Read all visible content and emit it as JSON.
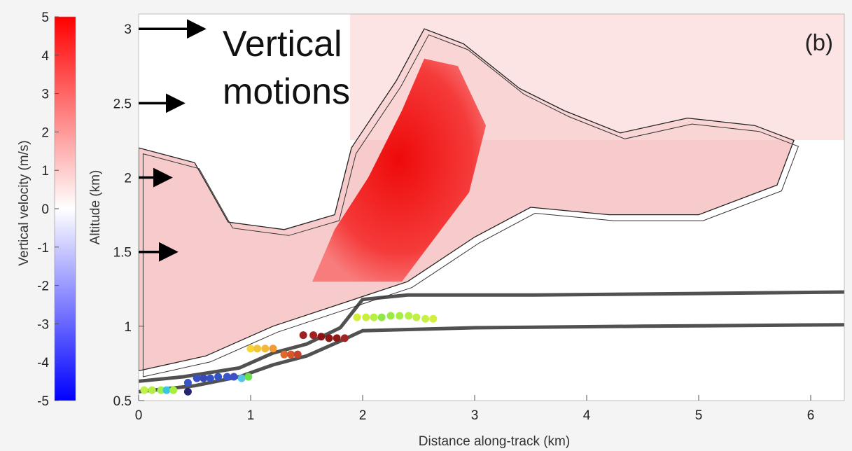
{
  "chart_data": {
    "type": "heatmap",
    "panel_label": "(b)",
    "xlabel": "Distance along-track (km)",
    "ylabel": "Altitude (km)",
    "xlim": [
      0,
      6.3
    ],
    "ylim": [
      0.5,
      3.1
    ],
    "x_ticks": [
      "0",
      "1",
      "2",
      "3",
      "4",
      "5",
      "6"
    ],
    "y_ticks": [
      "0.5",
      "1",
      "1.5",
      "2",
      "2.5",
      "3"
    ],
    "colorbar": {
      "label": "Vertical velocity (m/s)",
      "range": [
        -5,
        5
      ],
      "ticks": [
        "5",
        "4",
        "3",
        "2",
        "1",
        "0",
        "-1",
        "-2",
        "-3",
        "-4",
        "-5"
      ],
      "colormap": [
        "#0000ff",
        "#ffffff",
        "#ff0000"
      ]
    },
    "annotation": {
      "text_lines": [
        "Vertical",
        "motions"
      ],
      "arrow_altitudes_km": [
        3.0,
        2.5,
        2.0,
        1.5
      ]
    },
    "cloud_outline_km": [
      [
        0.0,
        2.2
      ],
      [
        0.5,
        2.1
      ],
      [
        0.8,
        1.7
      ],
      [
        1.3,
        1.65
      ],
      [
        1.75,
        1.75
      ],
      [
        1.9,
        2.2
      ],
      [
        2.3,
        2.65
      ],
      [
        2.55,
        3.0
      ],
      [
        2.9,
        2.9
      ],
      [
        3.4,
        2.6
      ],
      [
        3.8,
        2.45
      ],
      [
        4.3,
        2.3
      ],
      [
        4.9,
        2.4
      ],
      [
        5.5,
        2.35
      ],
      [
        5.85,
        2.25
      ],
      [
        5.7,
        1.95
      ],
      [
        5.0,
        1.75
      ],
      [
        4.2,
        1.75
      ],
      [
        3.5,
        1.8
      ],
      [
        3.0,
        1.6
      ],
      [
        2.4,
        1.3
      ],
      [
        2.0,
        1.2
      ],
      [
        1.2,
        1.0
      ],
      [
        0.6,
        0.8
      ],
      [
        0.0,
        0.7
      ]
    ],
    "updraft_core_km": [
      [
        1.55,
        1.3
      ],
      [
        1.75,
        1.65
      ],
      [
        2.05,
        2.0
      ],
      [
        2.35,
        2.45
      ],
      [
        2.55,
        2.8
      ],
      [
        2.85,
        2.75
      ],
      [
        3.1,
        2.35
      ],
      [
        2.95,
        1.9
      ],
      [
        2.6,
        1.55
      ],
      [
        2.35,
        1.3
      ]
    ],
    "surface_upper_km": [
      [
        0.0,
        0.63
      ],
      [
        0.4,
        0.66
      ],
      [
        0.9,
        0.72
      ],
      [
        1.2,
        0.82
      ],
      [
        1.5,
        0.88
      ],
      [
        1.8,
        0.99
      ],
      [
        2.0,
        1.18
      ],
      [
        2.4,
        1.21
      ],
      [
        3.5,
        1.21
      ],
      [
        5.0,
        1.22
      ],
      [
        6.3,
        1.23
      ]
    ],
    "surface_lower_km": [
      [
        0.0,
        0.56
      ],
      [
        0.5,
        0.6
      ],
      [
        0.9,
        0.66
      ],
      [
        1.2,
        0.74
      ],
      [
        1.5,
        0.8
      ],
      [
        1.8,
        0.9
      ],
      [
        2.0,
        0.97
      ],
      [
        3.0,
        0.99
      ],
      [
        4.5,
        1.0
      ],
      [
        6.3,
        1.01
      ]
    ],
    "points": [
      {
        "x": 0.05,
        "y": 0.57,
        "color": "#bdf247"
      },
      {
        "x": 0.12,
        "y": 0.57,
        "color": "#b3ef48"
      },
      {
        "x": 0.2,
        "y": 0.57,
        "color": "#9ef04a"
      },
      {
        "x": 0.25,
        "y": 0.57,
        "color": "#35c6e8"
      },
      {
        "x": 0.31,
        "y": 0.57,
        "color": "#a6ef3a"
      },
      {
        "x": 0.44,
        "y": 0.56,
        "color": "#262670"
      },
      {
        "x": 0.44,
        "y": 0.62,
        "color": "#3555c8"
      },
      {
        "x": 0.52,
        "y": 0.65,
        "color": "#3a4fc0"
      },
      {
        "x": 0.58,
        "y": 0.65,
        "color": "#3b48b8"
      },
      {
        "x": 0.64,
        "y": 0.65,
        "color": "#3552c4"
      },
      {
        "x": 0.71,
        "y": 0.66,
        "color": "#3352c6"
      },
      {
        "x": 0.79,
        "y": 0.66,
        "color": "#3a55c9"
      },
      {
        "x": 0.85,
        "y": 0.66,
        "color": "#3e52c5"
      },
      {
        "x": 0.92,
        "y": 0.65,
        "color": "#55c2ea"
      },
      {
        "x": 0.98,
        "y": 0.66,
        "color": "#6be04a"
      },
      {
        "x": 1.0,
        "y": 0.85,
        "color": "#f4d63b"
      },
      {
        "x": 1.06,
        "y": 0.85,
        "color": "#f2c438"
      },
      {
        "x": 1.13,
        "y": 0.85,
        "color": "#f3b83a"
      },
      {
        "x": 1.2,
        "y": 0.85,
        "color": "#f29b35"
      },
      {
        "x": 1.3,
        "y": 0.81,
        "color": "#e0692b"
      },
      {
        "x": 1.36,
        "y": 0.81,
        "color": "#d8562a"
      },
      {
        "x": 1.42,
        "y": 0.81,
        "color": "#c4432a"
      },
      {
        "x": 1.47,
        "y": 0.94,
        "color": "#9e2020"
      },
      {
        "x": 1.56,
        "y": 0.94,
        "color": "#a22222"
      },
      {
        "x": 1.63,
        "y": 0.93,
        "color": "#8a1414"
      },
      {
        "x": 1.7,
        "y": 0.92,
        "color": "#8c1515"
      },
      {
        "x": 1.77,
        "y": 0.92,
        "color": "#901818"
      },
      {
        "x": 1.84,
        "y": 0.92,
        "color": "#a02424"
      },
      {
        "x": 1.95,
        "y": 1.06,
        "color": "#d6ee3c"
      },
      {
        "x": 2.03,
        "y": 1.06,
        "color": "#c8ef3e"
      },
      {
        "x": 2.1,
        "y": 1.06,
        "color": "#b8f041"
      },
      {
        "x": 2.17,
        "y": 1.06,
        "color": "#8ee84a"
      },
      {
        "x": 2.25,
        "y": 1.07,
        "color": "#9aec44"
      },
      {
        "x": 2.33,
        "y": 1.07,
        "color": "#a8ee44"
      },
      {
        "x": 2.41,
        "y": 1.07,
        "color": "#b6f045"
      },
      {
        "x": 2.48,
        "y": 1.06,
        "color": "#c0f042"
      },
      {
        "x": 2.56,
        "y": 1.05,
        "color": "#c8ef44"
      },
      {
        "x": 2.63,
        "y": 1.05,
        "color": "#d4ee40"
      }
    ]
  }
}
